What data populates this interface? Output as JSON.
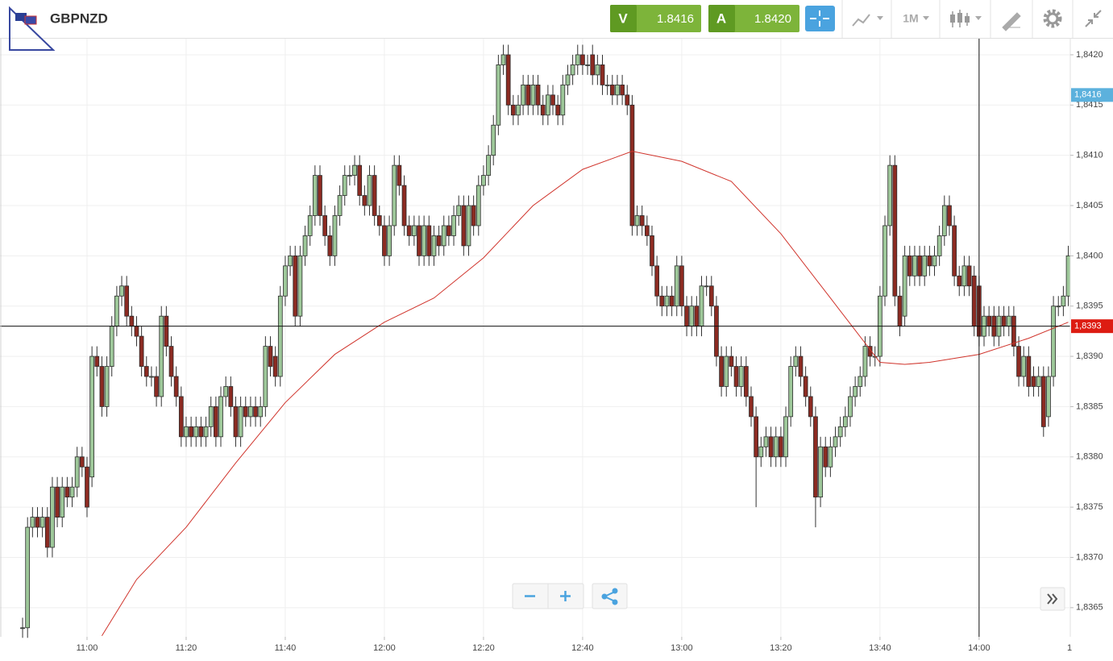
{
  "header": {
    "symbol": "GBPNZD",
    "sell": {
      "label": "V",
      "price": "1.8416"
    },
    "buy": {
      "label": "A",
      "price": "1.8420"
    },
    "timeframe": "1M"
  },
  "chart_data": {
    "type": "candlestick",
    "up_color": "#9ec89a",
    "down_color": "#8c2b22",
    "grid": true,
    "xlim": [
      642.44,
      858.4
    ],
    "ylim": [
      1.83621,
      1.84216
    ],
    "xticks": [
      {
        "value": 660,
        "label": "11:00"
      },
      {
        "value": 680,
        "label": "11:20"
      },
      {
        "value": 700,
        "label": "11:40"
      },
      {
        "value": 720,
        "label": "12:00"
      },
      {
        "value": 740,
        "label": "12:20"
      },
      {
        "value": 760,
        "label": "12:40"
      },
      {
        "value": 780,
        "label": "13:00"
      },
      {
        "value": 800,
        "label": "13:20"
      },
      {
        "value": 820,
        "label": "13:40"
      },
      {
        "value": 840,
        "label": "14:00"
      },
      {
        "value": 860,
        "label": "1"
      }
    ],
    "yticks": [
      {
        "value": 1.8365,
        "label": "1,8365"
      },
      {
        "value": 1.837,
        "label": "1,8370"
      },
      {
        "value": 1.8375,
        "label": "1,8375"
      },
      {
        "value": 1.838,
        "label": "1,8380"
      },
      {
        "value": 1.8385,
        "label": "1,8385"
      },
      {
        "value": 1.839,
        "label": "1,8390"
      },
      {
        "value": 1.8395,
        "label": "1,8395"
      },
      {
        "value": 1.84,
        "label": "1,8400"
      },
      {
        "value": 1.8405,
        "label": "1,8405"
      },
      {
        "value": 1.841,
        "label": "1,8410"
      },
      {
        "value": 1.8415,
        "label": "1,8415"
      },
      {
        "value": 1.842,
        "label": "1,8420"
      }
    ],
    "x": [
      647,
      648,
      649,
      650,
      651,
      652,
      653,
      654,
      655,
      656,
      657,
      658,
      659,
      660,
      661,
      662,
      663,
      664,
      665,
      666,
      667,
      668,
      669,
      670,
      671,
      672,
      673,
      674,
      675,
      676,
      677,
      678,
      679,
      680,
      681,
      682,
      683,
      684,
      685,
      686,
      687,
      688,
      689,
      690,
      691,
      692,
      693,
      694,
      695,
      696,
      697,
      698,
      699,
      700,
      701,
      702,
      703,
      704,
      705,
      706,
      707,
      708,
      709,
      710,
      711,
      712,
      713,
      714,
      715,
      716,
      717,
      718,
      719,
      720,
      721,
      722,
      723,
      724,
      725,
      726,
      727,
      728,
      729,
      730,
      731,
      732,
      733,
      734,
      735,
      736,
      737,
      738,
      739,
      740,
      741,
      742,
      743,
      744,
      745,
      746,
      747,
      748,
      749,
      750,
      751,
      752,
      753,
      754,
      755,
      756,
      757,
      758,
      759,
      760,
      761,
      762,
      763,
      764,
      765,
      766,
      767,
      768,
      769,
      770,
      771,
      772,
      773,
      774,
      775,
      776,
      777,
      778,
      779,
      780,
      781,
      782,
      783,
      784,
      785,
      786,
      787,
      788,
      789,
      790,
      791,
      792,
      793,
      794,
      795,
      796,
      797,
      798,
      799,
      800,
      801,
      802,
      803,
      804,
      805,
      806,
      807,
      808,
      809,
      810,
      811,
      812,
      813,
      814,
      815,
      816,
      817,
      818,
      819,
      820,
      821,
      822,
      823,
      824,
      825,
      826,
      827,
      828,
      829,
      830,
      831,
      832,
      833,
      834,
      835,
      836,
      837,
      838,
      839,
      840,
      841,
      842,
      843,
      844,
      845,
      846,
      847,
      848,
      849,
      850,
      851,
      852,
      853,
      854,
      855,
      856,
      857,
      858
    ],
    "open": [
      1.8363,
      1.8363,
      1.8373,
      1.8374,
      1.8373,
      1.8374,
      1.8371,
      1.8377,
      1.8374,
      1.8377,
      1.8376,
      1.8377,
      1.838,
      1.8379,
      1.8378,
      1.839,
      1.8389,
      1.8385,
      1.8389,
      1.8393,
      1.8396,
      1.8397,
      1.8394,
      1.8393,
      1.8392,
      1.8389,
      1.8388,
      1.8388,
      1.8386,
      1.8394,
      1.8391,
      1.8388,
      1.8386,
      1.8382,
      1.8383,
      1.8382,
      1.8383,
      1.8382,
      1.8383,
      1.8385,
      1.8382,
      1.8386,
      1.8387,
      1.8385,
      1.8382,
      1.8385,
      1.8384,
      1.8385,
      1.8384,
      1.8385,
      1.8391,
      1.839,
      1.8388,
      1.8396,
      1.8399,
      1.84,
      1.8394,
      1.84,
      1.8402,
      1.8404,
      1.8408,
      1.8404,
      1.8402,
      1.84,
      1.8404,
      1.8406,
      1.8408,
      1.8408,
      1.8409,
      1.8406,
      1.8405,
      1.8408,
      1.8404,
      1.8403,
      1.84,
      1.8403,
      1.8409,
      1.8407,
      1.8403,
      1.8402,
      1.8403,
      1.84,
      1.8403,
      1.84,
      1.8402,
      1.8401,
      1.8403,
      1.8402,
      1.8404,
      1.8405,
      1.8401,
      1.8405,
      1.8403,
      1.8407,
      1.8408,
      1.841,
      1.8413,
      1.8419,
      1.842,
      1.8415,
      1.8414,
      1.8415,
      1.8417,
      1.8415,
      1.8417,
      1.8415,
      1.8414,
      1.8416,
      1.8415,
      1.8414,
      1.8417,
      1.8418,
      1.8419,
      1.842,
      1.8419,
      1.842,
      1.8418,
      1.8419,
      1.8417,
      1.8417,
      1.8416,
      1.8417,
      1.8416,
      1.8415,
      1.8403,
      1.8404,
      1.8403,
      1.8402,
      1.8399,
      1.8396,
      1.8395,
      1.8396,
      1.8395,
      1.8399,
      1.8395,
      1.8393,
      1.8395,
      1.8393,
      1.8397,
      1.8397,
      1.8395,
      1.839,
      1.8387,
      1.839,
      1.8389,
      1.8387,
      1.8389,
      1.8386,
      1.8384,
      1.838,
      1.8381,
      1.8382,
      1.838,
      1.8382,
      1.838,
      1.8384,
      1.8389,
      1.839,
      1.8388,
      1.8386,
      1.8384,
      1.8376,
      1.8381,
      1.8379,
      1.8381,
      1.8382,
      1.8383,
      1.8384,
      1.8386,
      1.8387,
      1.8388,
      1.8391,
      1.839,
      1.839,
      1.8396,
      1.8403,
      1.8409,
      1.8396,
      1.8394,
      1.84,
      1.8398,
      1.84,
      1.8398,
      1.84,
      1.8399,
      1.84,
      1.8402,
      1.8405,
      1.8403,
      1.8398,
      1.8397,
      1.8399,
      1.8398,
      1.8397,
      1.8392,
      1.8394,
      1.8394,
      1.8392,
      1.8394,
      1.8393,
      1.8394,
      1.8391,
      1.8388,
      1.839,
      1.8388,
      1.8387,
      1.8388,
      1.8384,
      1.8388,
      1.8395,
      1.8395,
      1.8396
    ],
    "high": [
      1.8364,
      1.8374,
      1.8375,
      1.8375,
      1.8375,
      1.8375,
      1.8378,
      1.8378,
      1.8378,
      1.8378,
      1.8378,
      1.8381,
      1.8381,
      1.838,
      1.8391,
      1.8391,
      1.839,
      1.839,
      1.8394,
      1.8397,
      1.8398,
      1.8398,
      1.8395,
      1.8394,
      1.8393,
      1.839,
      1.8389,
      1.8389,
      1.8395,
      1.8395,
      1.8392,
      1.8389,
      1.8387,
      1.8384,
      1.8384,
      1.8384,
      1.8384,
      1.8384,
      1.8386,
      1.8386,
      1.8387,
      1.8388,
      1.8388,
      1.8386,
      1.8386,
      1.8386,
      1.8386,
      1.8386,
      1.8386,
      1.8392,
      1.8392,
      1.8391,
      1.8397,
      1.84,
      1.8401,
      1.8401,
      1.8401,
      1.8403,
      1.8405,
      1.8409,
      1.8409,
      1.8405,
      1.8403,
      1.8405,
      1.8407,
      1.8409,
      1.8409,
      1.841,
      1.841,
      1.8407,
      1.8409,
      1.8409,
      1.8405,
      1.8404,
      1.8404,
      1.841,
      1.841,
      1.8408,
      1.8404,
      1.8404,
      1.8404,
      1.8404,
      1.8404,
      1.8403,
      1.8403,
      1.8404,
      1.8404,
      1.8405,
      1.8406,
      1.8406,
      1.8406,
      1.8406,
      1.8408,
      1.8409,
      1.8411,
      1.8414,
      1.842,
      1.8421,
      1.8421,
      1.8416,
      1.8416,
      1.8418,
      1.8418,
      1.8418,
      1.8418,
      1.8416,
      1.8417,
      1.8417,
      1.8416,
      1.8418,
      1.8419,
      1.842,
      1.8421,
      1.8421,
      1.842,
      1.8421,
      1.842,
      1.842,
      1.8418,
      1.8418,
      1.8418,
      1.8418,
      1.8417,
      1.8416,
      1.8405,
      1.8405,
      1.8404,
      1.8403,
      1.84,
      1.8397,
      1.8397,
      1.8397,
      1.84,
      1.84,
      1.8396,
      1.8396,
      1.8396,
      1.8398,
      1.8398,
      1.8398,
      1.8396,
      1.8391,
      1.8391,
      1.8391,
      1.839,
      1.839,
      1.839,
      1.8387,
      1.8385,
      1.8382,
      1.8383,
      1.8383,
      1.8383,
      1.8383,
      1.8385,
      1.839,
      1.8391,
      1.8391,
      1.8389,
      1.8387,
      1.8385,
      1.8382,
      1.8382,
      1.8382,
      1.8383,
      1.8384,
      1.8385,
      1.8387,
      1.8388,
      1.8389,
      1.8392,
      1.8392,
      1.8391,
      1.8397,
      1.8404,
      1.841,
      1.841,
      1.8397,
      1.8401,
      1.8401,
      1.8401,
      1.8401,
      1.8401,
      1.8401,
      1.8401,
      1.8403,
      1.8406,
      1.8406,
      1.8404,
      1.8399,
      1.84,
      1.84,
      1.8399,
      1.8398,
      1.8395,
      1.8395,
      1.8395,
      1.8395,
      1.8395,
      1.8395,
      1.8395,
      1.8392,
      1.8391,
      1.8391,
      1.8389,
      1.8389,
      1.8389,
      1.8389,
      1.8396,
      1.8396,
      1.8397,
      1.8401
    ],
    "low": [
      1.8362,
      1.8362,
      1.8372,
      1.8372,
      1.8372,
      1.837,
      1.837,
      1.8373,
      1.8373,
      1.8375,
      1.8375,
      1.8376,
      1.8378,
      1.8374,
      1.8377,
      1.8388,
      1.8384,
      1.8384,
      1.8388,
      1.8392,
      1.8395,
      1.8393,
      1.8392,
      1.8391,
      1.8388,
      1.8387,
      1.8387,
      1.8385,
      1.8385,
      1.839,
      1.8387,
      1.8385,
      1.8381,
      1.8381,
      1.8381,
      1.8381,
      1.8381,
      1.8381,
      1.8382,
      1.8381,
      1.8381,
      1.8385,
      1.8384,
      1.8381,
      1.8381,
      1.8383,
      1.8383,
      1.8383,
      1.8383,
      1.8384,
      1.8388,
      1.8387,
      1.8387,
      1.8395,
      1.8398,
      1.8393,
      1.8393,
      1.8399,
      1.8401,
      1.8403,
      1.8403,
      1.8401,
      1.8399,
      1.8399,
      1.8403,
      1.8405,
      1.8407,
      1.8407,
      1.8405,
      1.8404,
      1.8404,
      1.8403,
      1.8402,
      1.8399,
      1.8399,
      1.8402,
      1.8406,
      1.8402,
      1.8401,
      1.8401,
      1.8399,
      1.8399,
      1.8399,
      1.8399,
      1.84,
      1.84,
      1.8401,
      1.8401,
      1.8403,
      1.84,
      1.84,
      1.8402,
      1.8402,
      1.8406,
      1.8407,
      1.8409,
      1.8412,
      1.8418,
      1.8414,
      1.8413,
      1.8413,
      1.8414,
      1.8414,
      1.8414,
      1.8414,
      1.8413,
      1.8413,
      1.8414,
      1.8413,
      1.8413,
      1.8416,
      1.8417,
      1.8418,
      1.8418,
      1.8418,
      1.8417,
      1.8417,
      1.8416,
      1.8416,
      1.8415,
      1.8415,
      1.8415,
      1.8414,
      1.8402,
      1.8402,
      1.8402,
      1.8401,
      1.8398,
      1.8395,
      1.8394,
      1.8394,
      1.8394,
      1.8394,
      1.8394,
      1.8392,
      1.8392,
      1.8392,
      1.8392,
      1.8396,
      1.8394,
      1.8389,
      1.8386,
      1.8386,
      1.8388,
      1.8386,
      1.8386,
      1.8385,
      1.8383,
      1.8375,
      1.8379,
      1.838,
      1.8379,
      1.8379,
      1.8379,
      1.8379,
      1.8383,
      1.8388,
      1.8387,
      1.8385,
      1.8383,
      1.8373,
      1.8375,
      1.8378,
      1.8378,
      1.838,
      1.8381,
      1.8382,
      1.8383,
      1.8385,
      1.8386,
      1.8387,
      1.8389,
      1.8389,
      1.8389,
      1.8395,
      1.8402,
      1.8395,
      1.8392,
      1.8393,
      1.8397,
      1.8397,
      1.8397,
      1.8397,
      1.8398,
      1.8398,
      1.8399,
      1.8401,
      1.8402,
      1.8397,
      1.8396,
      1.8396,
      1.8396,
      1.8392,
      1.8391,
      1.8391,
      1.8392,
      1.8391,
      1.8391,
      1.8392,
      1.8392,
      1.839,
      1.8387,
      1.8387,
      1.8386,
      1.8386,
      1.8386,
      1.8382,
      1.8383,
      1.8387,
      1.8394,
      1.8394,
      1.8395
    ],
    "close": [
      1.8363,
      1.8373,
      1.8374,
      1.8373,
      1.8374,
      1.8371,
      1.8377,
      1.8374,
      1.8377,
      1.8376,
      1.8377,
      1.838,
      1.8379,
      1.8375,
      1.839,
      1.8389,
      1.8385,
      1.8389,
      1.8393,
      1.8396,
      1.8397,
      1.8394,
      1.8393,
      1.8392,
      1.8389,
      1.8388,
      1.8388,
      1.8386,
      1.8394,
      1.8391,
      1.8388,
      1.8386,
      1.8382,
      1.8383,
      1.8382,
      1.8383,
      1.8382,
      1.8383,
      1.8385,
      1.8382,
      1.8386,
      1.8387,
      1.8385,
      1.8382,
      1.8385,
      1.8384,
      1.8385,
      1.8384,
      1.8385,
      1.8391,
      1.8389,
      1.8388,
      1.8396,
      1.8399,
      1.84,
      1.8394,
      1.84,
      1.8402,
      1.8404,
      1.8408,
      1.8404,
      1.8402,
      1.84,
      1.8404,
      1.8406,
      1.8408,
      1.8408,
      1.8409,
      1.8406,
      1.8405,
      1.8408,
      1.8404,
      1.8403,
      1.84,
      1.8403,
      1.8409,
      1.8407,
      1.8403,
      1.8402,
      1.8403,
      1.84,
      1.8403,
      1.84,
      1.8402,
      1.8401,
      1.8403,
      1.8402,
      1.8404,
      1.8405,
      1.8401,
      1.8405,
      1.8403,
      1.8407,
      1.8408,
      1.841,
      1.8413,
      1.8419,
      1.842,
      1.8415,
      1.8414,
      1.8415,
      1.8417,
      1.8415,
      1.8417,
      1.8415,
      1.8414,
      1.8416,
      1.8415,
      1.8414,
      1.8417,
      1.8418,
      1.8419,
      1.842,
      1.8419,
      1.8419,
      1.8418,
      1.8419,
      1.8417,
      1.8417,
      1.8416,
      1.8417,
      1.8416,
      1.8415,
      1.8403,
      1.8404,
      1.8403,
      1.8402,
      1.8399,
      1.8396,
      1.8395,
      1.8396,
      1.8395,
      1.8399,
      1.8395,
      1.8393,
      1.8395,
      1.8393,
      1.8397,
      1.8397,
      1.8395,
      1.839,
      1.8387,
      1.839,
      1.8389,
      1.8387,
      1.8389,
      1.8386,
      1.8384,
      1.838,
      1.8381,
      1.8382,
      1.838,
      1.8382,
      1.838,
      1.8384,
      1.8389,
      1.839,
      1.8388,
      1.8386,
      1.8384,
      1.8376,
      1.8381,
      1.8379,
      1.8381,
      1.8382,
      1.8383,
      1.8384,
      1.8386,
      1.8387,
      1.8388,
      1.8391,
      1.839,
      1.839,
      1.8396,
      1.8403,
      1.8409,
      1.8396,
      1.8393,
      1.84,
      1.8398,
      1.84,
      1.8398,
      1.84,
      1.8399,
      1.84,
      1.8402,
      1.8405,
      1.8403,
      1.8398,
      1.8397,
      1.8399,
      1.8397,
      1.8393,
      1.8392,
      1.8394,
      1.8393,
      1.8392,
      1.8394,
      1.8393,
      1.8394,
      1.8391,
      1.8388,
      1.839,
      1.8387,
      1.8387,
      1.8388,
      1.8383,
      1.8388,
      1.8395,
      1.8395,
      1.8396,
      1.84
    ],
    "moving_average": {
      "color": "#d0342c",
      "x": [
        663,
        670,
        680,
        690,
        700,
        710,
        720,
        730,
        740,
        750,
        760,
        770,
        780,
        790,
        800,
        810,
        820,
        825,
        830,
        840,
        850,
        858
      ],
      "values": [
        1.83622,
        1.83678,
        1.8373,
        1.83794,
        1.83854,
        1.83902,
        1.83934,
        1.83958,
        1.83998,
        1.8405,
        1.84086,
        1.84104,
        1.84094,
        1.84074,
        1.84022,
        1.83958,
        1.83894,
        1.83892,
        1.83894,
        1.83902,
        1.83918,
        1.83934
      ]
    },
    "crosshair": {
      "price": 1.8393,
      "label": "1,8393",
      "time": 840,
      "color": "#dd1c12"
    },
    "last_price": {
      "value": 1.8416,
      "label": "1,8416",
      "color": "#5cb1dd"
    }
  }
}
